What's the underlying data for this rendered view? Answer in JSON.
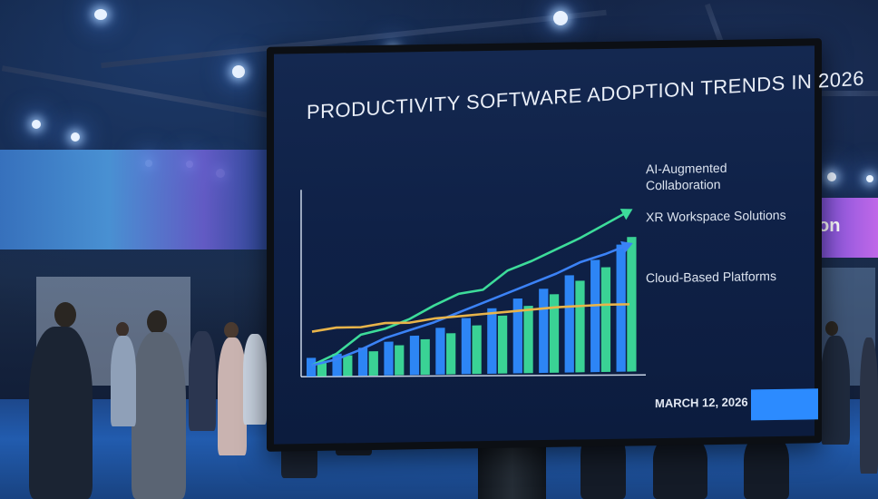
{
  "chart_data": {
    "type": "bar",
    "title": "PRODUCTIVITY SOFTWARE ADOPTION TRENDS IN 2026",
    "bar_series": [
      {
        "color": "#2f8bff",
        "values": [
          1.0,
          1.2,
          1.5,
          1.8,
          2.1,
          2.5,
          3.0,
          3.5,
          4.0,
          4.5,
          5.2,
          6.0,
          6.8
        ]
      },
      {
        "color": "#3ddc9a",
        "values": [
          0.8,
          1.1,
          1.3,
          1.6,
          1.9,
          2.2,
          2.6,
          3.1,
          3.6,
          4.2,
          4.9,
          5.6,
          7.2
        ]
      }
    ],
    "series": [
      {
        "name": "AI-Augmented Collaboration",
        "color": "#3ddc9a",
        "values": [
          0.6,
          1.2,
          2.2,
          2.5,
          3.0,
          3.7,
          4.3,
          4.5,
          5.5,
          6.0,
          6.6,
          7.2,
          7.9,
          8.6
        ]
      },
      {
        "name": "XR Workspace Solutions",
        "color": "#3b82f6",
        "values": [
          0.6,
          0.9,
          1.4,
          2.0,
          2.4,
          2.8,
          3.3,
          3.8,
          4.3,
          4.8,
          5.3,
          5.9,
          6.3,
          6.8
        ]
      },
      {
        "name": "Cloud-Based Platforms",
        "color": "#e8b44a",
        "values": [
          2.4,
          2.6,
          2.6,
          2.8,
          2.8,
          3.0,
          3.1,
          3.2,
          3.3,
          3.4,
          3.5,
          3.55,
          3.6,
          3.6
        ]
      }
    ],
    "ylim": [
      0,
      10
    ],
    "grid": false
  },
  "screen": {
    "title": "PRODUCTIVITY SOFTWARE ADOPTION TRENDS IN 2026",
    "legend": {
      "ai": "AI-Augmented Collaboration",
      "xr": "XR Workspace Solutions",
      "cloud": "Cloud-Based Platforms"
    },
    "date": "MARCH 12, 2026"
  },
  "colors": {
    "screen_bg": "#0f2147",
    "accent": "#2c8bff"
  }
}
